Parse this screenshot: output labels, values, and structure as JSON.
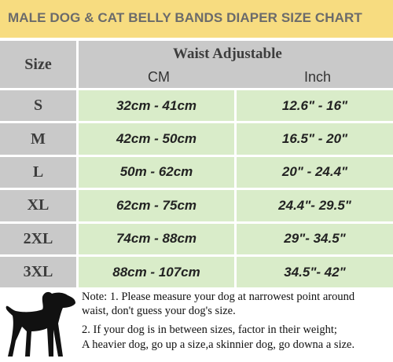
{
  "header": {
    "title": "MALE DOG & CAT BELLY BANDS DIAPER SIZE CHART"
  },
  "table": {
    "size_header": "Size",
    "waist_header": "Waist Adjustable",
    "unit_headers": [
      "CM",
      "Inch"
    ],
    "rows": [
      [
        "S",
        "32cm - 41cm",
        "12.6\" - 16\""
      ],
      [
        "M",
        "42cm - 50cm",
        "16.5\" - 20\""
      ],
      [
        "L",
        "50m - 62cm",
        "20\" - 24.4\""
      ],
      [
        "XL",
        "62cm - 75cm",
        "24.4\"- 29.5\""
      ],
      [
        "2XL",
        "74cm - 88cm",
        "29\"- 34.5\""
      ],
      [
        "3XL",
        "88cm - 107cm",
        "34.5\"- 42\""
      ]
    ]
  },
  "notes": [
    "Note: 1. Please measure your dog at narrowest point around",
    "waist, don't guess your dog's size.",
    "2. If your dog is in between sizes, factor in their weight;",
    "A heavier dog, go up a size,a skinnier dog, go downa a size."
  ]
}
